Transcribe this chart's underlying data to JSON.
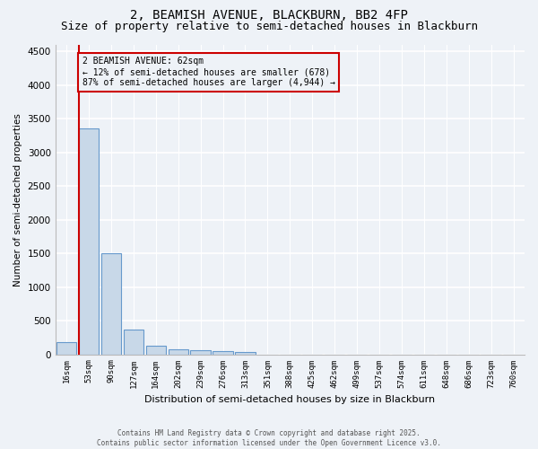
{
  "title_line1": "2, BEAMISH AVENUE, BLACKBURN, BB2 4FP",
  "title_line2": "Size of property relative to semi-detached houses in Blackburn",
  "xlabel": "Distribution of semi-detached houses by size in Blackburn",
  "ylabel": "Number of semi-detached properties",
  "bar_labels": [
    "16sqm",
    "53sqm",
    "90sqm",
    "127sqm",
    "164sqm",
    "202sqm",
    "239sqm",
    "276sqm",
    "313sqm",
    "351sqm",
    "388sqm",
    "425sqm",
    "462sqm",
    "499sqm",
    "537sqm",
    "574sqm",
    "611sqm",
    "648sqm",
    "686sqm",
    "723sqm",
    "760sqm"
  ],
  "bar_values": [
    185,
    3360,
    1500,
    370,
    130,
    75,
    55,
    50,
    30,
    0,
    0,
    0,
    0,
    0,
    0,
    0,
    0,
    0,
    0,
    0,
    0
  ],
  "bar_color": "#c8d8e8",
  "bar_edge_color": "#6699cc",
  "highlight_line_color": "#cc0000",
  "annotation_title": "2 BEAMISH AVENUE: 62sqm",
  "annotation_line1": "← 12% of semi-detached houses are smaller (678)",
  "annotation_line2": "87% of semi-detached houses are larger (4,944) →",
  "annotation_box_color": "#cc0000",
  "ylim": [
    0,
    4600
  ],
  "yticks": [
    0,
    500,
    1000,
    1500,
    2000,
    2500,
    3000,
    3500,
    4000,
    4500
  ],
  "footnote1": "Contains HM Land Registry data © Crown copyright and database right 2025.",
  "footnote2": "Contains public sector information licensed under the Open Government Licence v3.0.",
  "bg_color": "#eef2f7",
  "grid_color": "#ffffff",
  "title_fontsize": 10,
  "subtitle_fontsize": 9
}
